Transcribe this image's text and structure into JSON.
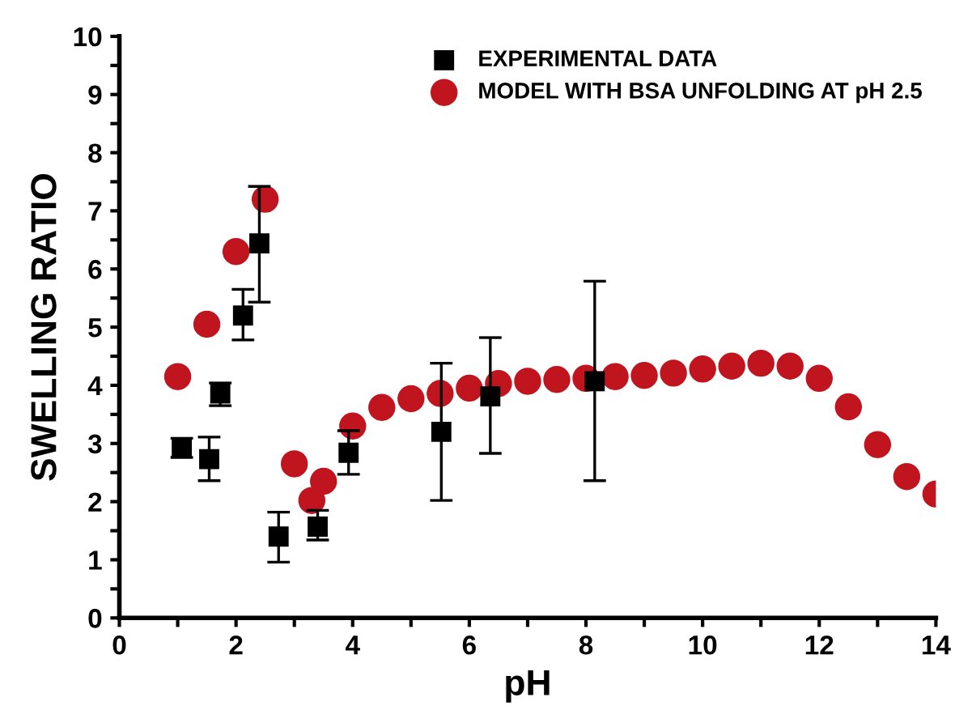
{
  "chart_data": {
    "type": "scatter",
    "xlabel": "pH",
    "ylabel": "SWELLING RATIO",
    "xlim": [
      0,
      14
    ],
    "ylim": [
      0,
      10
    ],
    "xticks": [
      0,
      {
        "value": 1,
        "label": null
      },
      2,
      {
        "value": 3,
        "label": null
      },
      4,
      {
        "value": 5,
        "label": null
      },
      6,
      {
        "value": 7,
        "label": null
      },
      8,
      {
        "value": 9,
        "label": null
      },
      10,
      {
        "value": 11,
        "label": null
      },
      12,
      {
        "value": 13,
        "label": null
      },
      14
    ],
    "yticks": [
      0,
      {
        "value": 0.5,
        "label": null
      },
      1,
      {
        "value": 1.5,
        "label": null
      },
      2,
      {
        "value": 2.5,
        "label": null
      },
      3,
      {
        "value": 3.5,
        "label": null
      },
      4,
      {
        "value": 4.5,
        "label": null
      },
      5,
      {
        "value": 5.5,
        "label": null
      },
      6,
      {
        "value": 6.5,
        "label": null
      },
      7,
      {
        "value": 7.5,
        "label": null
      },
      8,
      {
        "value": 8.5,
        "label": null
      },
      9,
      {
        "value": 9.5,
        "label": null
      },
      10
    ],
    "grid": false,
    "legend": "top right",
    "series": [
      {
        "name": "EXPERIMENTAL DATA",
        "color": "#000000",
        "marker": "square",
        "x": [
          1.07,
          1.54,
          1.73,
          2.12,
          2.4,
          2.73,
          3.4,
          3.93,
          5.52,
          6.36,
          8.15
        ],
        "values": [
          2.92,
          2.73,
          3.86,
          5.2,
          6.44,
          1.4,
          1.57,
          2.84,
          3.2,
          3.81,
          4.07
        ],
        "errors": [
          [
            2.76,
            3.09
          ],
          [
            2.36,
            3.11
          ],
          [
            3.65,
            4.04
          ],
          [
            4.78,
            5.65
          ],
          [
            5.43,
            7.42
          ],
          [
            0.96,
            1.82
          ],
          [
            1.34,
            1.85
          ],
          [
            2.47,
            3.22
          ],
          [
            2.02,
            4.38
          ],
          [
            2.83,
            4.82
          ],
          [
            2.36,
            5.79
          ]
        ]
      },
      {
        "name": "MODEL WITH BSA UNFOLDING AT pH 2.5",
        "color": "#c0141e",
        "marker": "circle",
        "x": [
          1,
          1.5,
          2,
          2.5,
          3,
          3.3,
          3.5,
          4,
          4.5,
          5,
          5.5,
          6,
          6.5,
          7,
          7.5,
          8,
          8.5,
          9,
          9.5,
          10,
          10.5,
          11,
          11.5,
          12,
          12.5,
          13,
          13.5,
          14
        ],
        "values": [
          4.15,
          5.05,
          6.3,
          7.2,
          2.65,
          2.02,
          2.35,
          3.3,
          3.62,
          3.77,
          3.86,
          3.95,
          4.03,
          4.07,
          4.1,
          4.12,
          4.15,
          4.17,
          4.21,
          4.28,
          4.33,
          4.38,
          4.33,
          4.12,
          3.63,
          2.98,
          2.43,
          2.13
        ]
      }
    ]
  }
}
